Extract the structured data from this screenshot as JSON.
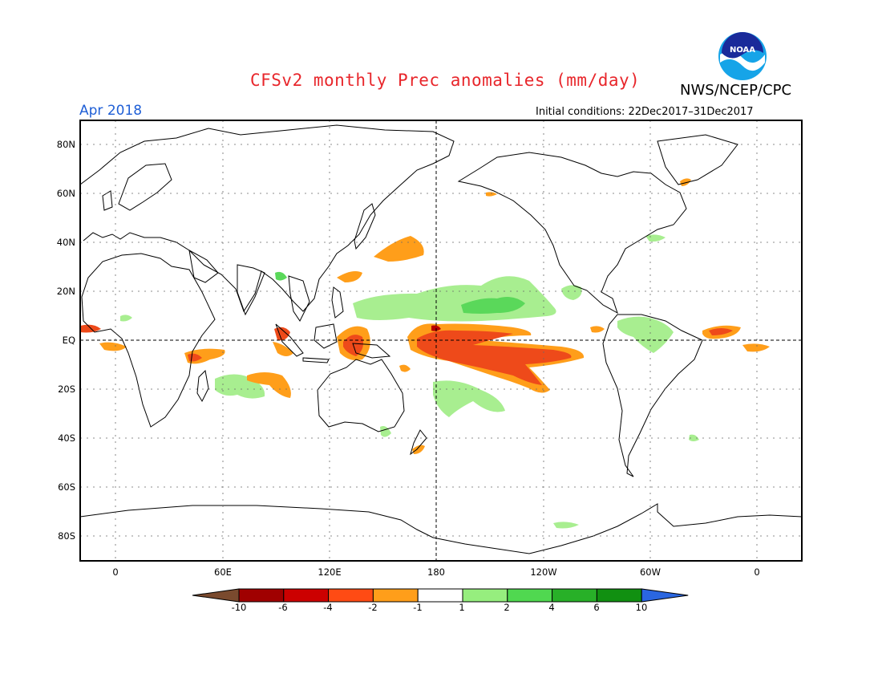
{
  "header": {
    "title": "CFSv2 monthly Prec anomalies (mm/day)",
    "month": "Apr 2018",
    "org": "NWS/NCEP/CPC",
    "logo_text": "NOAA",
    "initial_conditions": "Initial conditions: 22Dec2017–31Dec2017"
  },
  "axes": {
    "lat_labels": [
      "80N",
      "60N",
      "40N",
      "20N",
      "EQ",
      "20S",
      "40S",
      "60S",
      "80S"
    ],
    "lon_labels": [
      "0",
      "60E",
      "120E",
      "180",
      "120W",
      "60W",
      "0"
    ]
  },
  "colorbar": {
    "labels": [
      "-10",
      "-6",
      "-4",
      "-2",
      "-1",
      "1",
      "2",
      "4",
      "6",
      "10"
    ],
    "colors": [
      "#7a4a2e",
      "#a00000",
      "#cc0000",
      "#ff4b14",
      "#ff9e1a",
      "#ffffff",
      "#96ee7e",
      "#50d850",
      "#28b028",
      "#119011",
      "#2a66e0"
    ]
  },
  "colors": {
    "title": "#e8262b",
    "month": "#1f5fd6",
    "dry_strong": "#ee4a1a",
    "dry_moderate": "#ff9e1a",
    "wet_light": "#a8ee90",
    "wet_moderate": "#5ad85a"
  }
}
